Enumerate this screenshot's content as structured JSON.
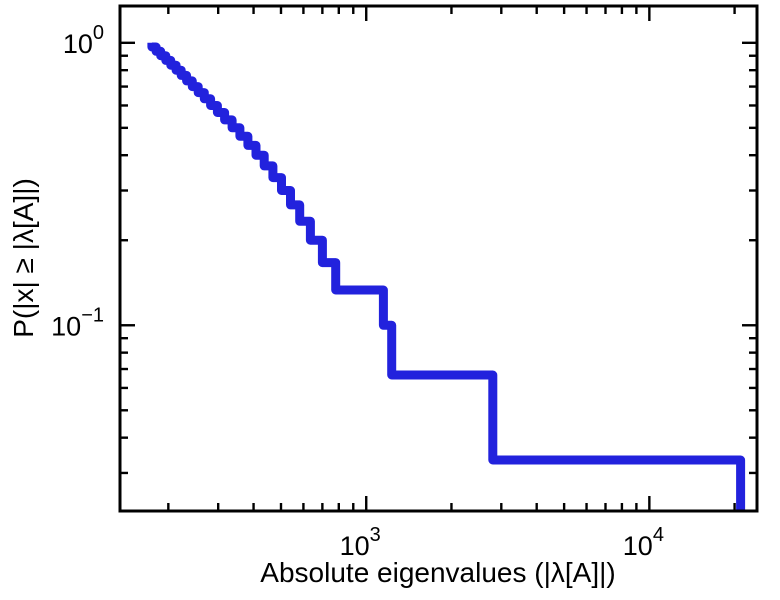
{
  "chart_data": {
    "type": "line",
    "subtype": "empirical-ccdf-step",
    "title": "",
    "xlabel": "Absolute eigenvalues (|λ[A]|)",
    "ylabel": "P(|x| ≥ |λ[A]|)",
    "x_scale": "log",
    "y_scale": "log",
    "xlim": [
      135,
      24000
    ],
    "ylim": [
      0.022,
      1.35
    ],
    "x_tick_exponents": [
      3,
      4
    ],
    "y_tick_exponents": [
      0,
      -1
    ],
    "grid": false,
    "legend": "none",
    "n_points": 30,
    "eigenvalues": [
      175,
      181,
      188,
      196,
      204,
      213,
      222,
      232,
      243,
      255,
      268,
      282,
      298,
      316,
      336,
      358,
      382,
      408,
      436,
      468,
      502,
      540,
      582,
      635,
      700,
      780,
      1150,
      1230,
      2800,
      21000
    ],
    "ccdf_levels": [
      1.0,
      0.967,
      0.933,
      0.9,
      0.867,
      0.833,
      0.8,
      0.767,
      0.733,
      0.7,
      0.667,
      0.633,
      0.6,
      0.567,
      0.533,
      0.5,
      0.467,
      0.433,
      0.4,
      0.367,
      0.333,
      0.3,
      0.267,
      0.233,
      0.2,
      0.167,
      0.133,
      0.1,
      0.067,
      0.033
    ],
    "line_color": "#2222dd",
    "line_width": 9,
    "axis_color": "#000000",
    "background": "#ffffff"
  }
}
